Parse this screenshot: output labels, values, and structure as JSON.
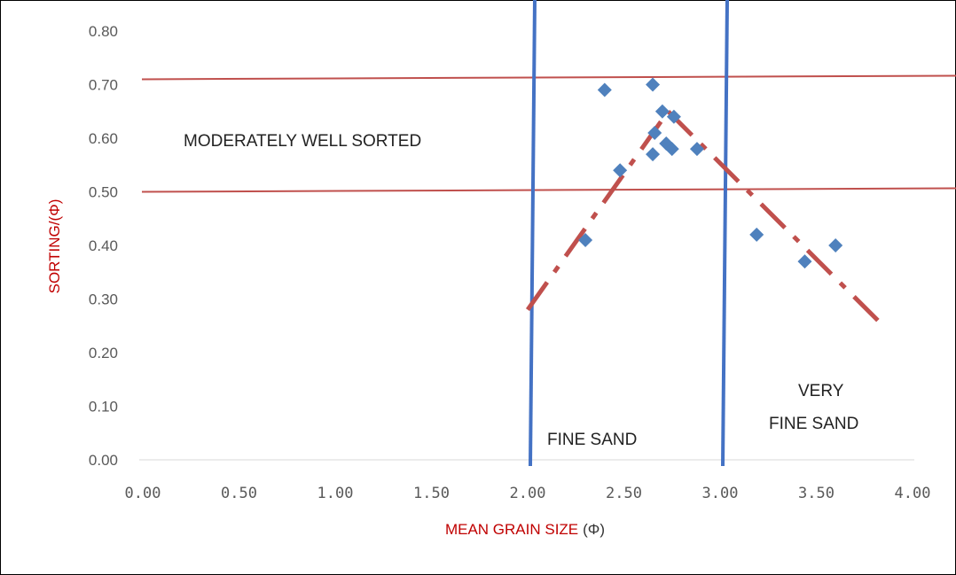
{
  "chart_data": {
    "type": "scatter",
    "title": "",
    "xlabel": "MEAN GRAIN SIZE",
    "xlabel_unit": "(Φ)",
    "ylabel": "SORTING/(Φ)",
    "xlim": [
      0,
      4
    ],
    "ylim": [
      0,
      0.8
    ],
    "x_ticks": [
      "0.00",
      "0.50",
      "1.00",
      "1.50",
      "2.00",
      "2.50",
      "3.00",
      "3.50",
      "4.00"
    ],
    "y_ticks": [
      "0.00",
      "0.10",
      "0.20",
      "0.30",
      "0.40",
      "0.50",
      "0.60",
      "0.70",
      "0.80"
    ],
    "grid": false,
    "points": [
      {
        "x": 2.3,
        "y": 0.41
      },
      {
        "x": 2.4,
        "y": 0.69
      },
      {
        "x": 2.48,
        "y": 0.54
      },
      {
        "x": 2.65,
        "y": 0.7
      },
      {
        "x": 2.65,
        "y": 0.57
      },
      {
        "x": 2.66,
        "y": 0.61
      },
      {
        "x": 2.7,
        "y": 0.65
      },
      {
        "x": 2.72,
        "y": 0.59
      },
      {
        "x": 2.75,
        "y": 0.58
      },
      {
        "x": 2.76,
        "y": 0.64
      },
      {
        "x": 2.88,
        "y": 0.58
      },
      {
        "x": 3.19,
        "y": 0.42
      },
      {
        "x": 3.44,
        "y": 0.37
      },
      {
        "x": 3.6,
        "y": 0.4
      }
    ],
    "trend_lines": [
      {
        "style": "dash-dot",
        "from": [
          2.0,
          0.28
        ],
        "to": [
          2.73,
          0.65
        ]
      },
      {
        "style": "dash-dot",
        "from": [
          2.73,
          0.65
        ],
        "to": [
          3.82,
          0.26
        ]
      }
    ],
    "horizontal_lines": [
      0.5,
      0.71
    ],
    "vertical_lines": [
      2.0,
      3.0
    ],
    "annotations": {
      "moderately_well_sorted": "MODERATELY WELL SORTED",
      "fine_sand": "FINE  SAND",
      "very_fine_sand_line1": "VERY",
      "very_fine_sand_line2": "FINE SAND"
    },
    "colors": {
      "points": "#4f81bd",
      "trend": "#c0504d",
      "hlines": "#c0504d",
      "vlines": "#4472c4",
      "axis_label_red": "#c00000"
    }
  }
}
